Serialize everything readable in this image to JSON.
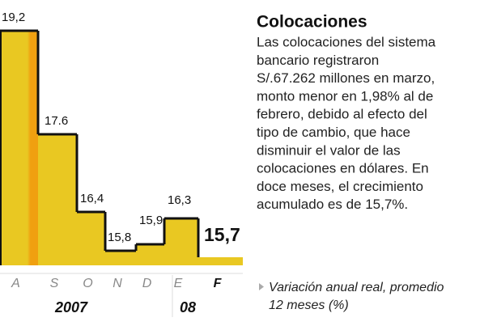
{
  "chart_data": {
    "type": "step",
    "title": "Colocaciones",
    "body": [
      "Las colocaciones del sistema",
      "bancario registraron",
      "S/.67.262 millones en marzo,",
      "monto menor en 1,98% al de",
      "febrero, debido al efecto del",
      "tipo de cambio, que hace",
      "disminuir el valor de las",
      "colocaciones en dólares. En",
      "doce meses, el crecimiento",
      "acumulado es de 15,7%."
    ],
    "note": [
      "Variación anual real, promedio",
      "12 meses (%)"
    ],
    "categories": [
      "A",
      "S",
      "O",
      "N",
      "D",
      "E",
      "F"
    ],
    "groups": [
      "2007",
      "08"
    ],
    "values": [
      19.2,
      17.6,
      16.4,
      15.8,
      15.9,
      16.3,
      15.7
    ],
    "value_labels": [
      "19,2",
      "17.6",
      "16,4",
      "15,8",
      "15,9",
      "16,3",
      "15,7"
    ],
    "color": "#e9c822"
  }
}
